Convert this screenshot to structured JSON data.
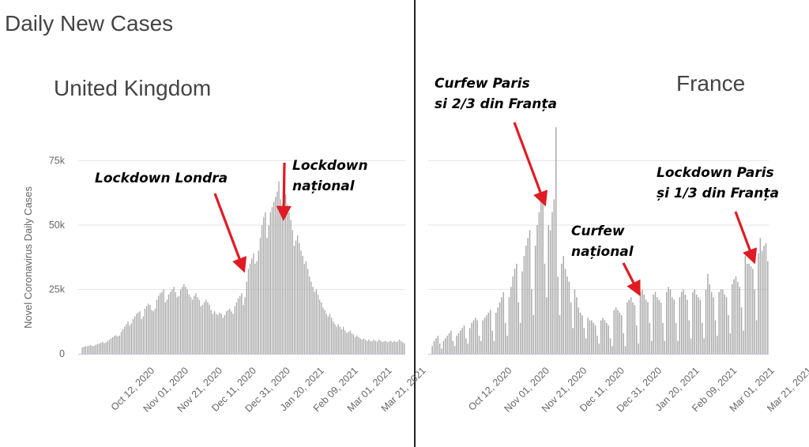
{
  "title": "Daily New Cases",
  "colors": {
    "bar": "#a9a9a9",
    "arrow": "#e01b24",
    "grid": "#e6e6e6",
    "axis": "#c8c8de"
  },
  "chart_data": [
    {
      "type": "bar",
      "title": "United Kingdom",
      "ylabel": "Novel Coronavirus Daily Cases",
      "ylim": [
        0,
        80000
      ],
      "yticks": [
        0,
        25000,
        50000,
        75000
      ],
      "yticklabels": [
        "0",
        "25k",
        "50k",
        "75k"
      ],
      "xticks": [
        "Oct 12, 2020",
        "Nov 01, 2020",
        "Nov 21, 2020",
        "Dec 11, 2020",
        "Dec 31, 2020",
        "Jan 20, 2021",
        "Feb 09, 2021",
        "Mar 01, 2021",
        "Mar 21, 2021"
      ],
      "grid": true,
      "series": [
        {
          "start_date": "2020-09-01",
          "values": [
            2500,
            2700,
            2900,
            3000,
            3200,
            3300,
            3000,
            3100,
            3500,
            3800,
            4000,
            4300,
            4600,
            4200,
            4400,
            5000,
            5500,
            6000,
            6500,
            7000,
            7200,
            6800,
            7100,
            8500,
            9500,
            10500,
            11500,
            12500,
            11000,
            11800,
            13500,
            14500,
            15500,
            16000,
            16500,
            13500,
            14500,
            17500,
            18500,
            19500,
            19000,
            17000,
            16500,
            17500,
            21000,
            22500,
            23500,
            24000,
            25000,
            20000,
            21000,
            23000,
            24000,
            25000,
            26000,
            24000,
            22000,
            22500,
            25000,
            26000,
            27000,
            26000,
            25000,
            23000,
            22000,
            21000,
            22500,
            23500,
            22000,
            21000,
            18500,
            19000,
            20000,
            21000,
            20000,
            19000,
            17000,
            15500,
            16500,
            15500,
            15000,
            16000,
            15500,
            14000,
            15000,
            16500,
            17000,
            17500,
            16500,
            15500,
            18500,
            20000,
            21500,
            22500,
            23500,
            19000,
            22000,
            28000,
            33000,
            35000,
            37000,
            39000,
            35000,
            36000,
            40000,
            45000,
            50000,
            53000,
            55000,
            45000,
            50000,
            55000,
            57000,
            59000,
            61000,
            63000,
            67000,
            60000,
            58000,
            60000,
            62000,
            58000,
            55000,
            52000,
            48000,
            42000,
            44000,
            46000,
            43000,
            40000,
            38000,
            35000,
            36000,
            33000,
            30000,
            28000,
            26000,
            24000,
            25000,
            23000,
            21000,
            20000,
            18000,
            17000,
            15500,
            14500,
            15500,
            14000,
            12500,
            11500,
            10500,
            11500,
            10500,
            9500,
            10500,
            9000,
            8000,
            8500,
            9000,
            8000,
            7500,
            6500,
            7000,
            6500,
            6000,
            5500,
            6000,
            5500,
            5000,
            5500,
            5000,
            4800,
            5500,
            5000,
            4800,
            5500,
            5000,
            4600,
            4800,
            5000,
            4500,
            4800,
            5000,
            4500,
            5000,
            4600,
            4800,
            5500,
            5000,
            4500,
            4000
          ]
        }
      ],
      "annotations": [
        {
          "text": [
            "Lockdown Londra"
          ],
          "x": "2020-12-16",
          "y": 34000
        },
        {
          "text": [
            "Lockdown",
            "național"
          ],
          "x": "2021-01-04",
          "y": 55000
        }
      ]
    },
    {
      "type": "bar",
      "title": "France",
      "ylim": [
        0,
        80000
      ],
      "yticks": [
        0,
        25000,
        50000,
        75000
      ],
      "xticks": [
        "Oct 12, 2020",
        "Nov 01, 2020",
        "Nov 21, 2020",
        "Dec 11, 2020",
        "Dec 31, 2020",
        "Jan 20, 2021",
        "Feb 09, 2021",
        "Mar 01, 2021",
        "Mar 21, 2021"
      ],
      "grid": true,
      "series": [
        {
          "start_date": "2020-09-01",
          "values": [
            3000,
            5000,
            6000,
            7000,
            4000,
            2000,
            5000,
            6000,
            7000,
            8000,
            9000,
            5000,
            3000,
            7000,
            8000,
            9000,
            10000,
            11000,
            6000,
            4000,
            10000,
            12000,
            13000,
            14000,
            13000,
            7000,
            5000,
            13000,
            14000,
            15000,
            16000,
            17000,
            9000,
            5000,
            16000,
            18000,
            20000,
            22000,
            24000,
            12000,
            7000,
            22000,
            26000,
            30000,
            33000,
            35000,
            20000,
            12000,
            32000,
            38000,
            42000,
            45000,
            48000,
            25000,
            15000,
            42000,
            50000,
            55000,
            60000,
            62000,
            35000,
            22000,
            50000,
            48000,
            55000,
            60000,
            88000,
            30000,
            15000,
            35000,
            38000,
            33000,
            30000,
            28000,
            20000,
            10000,
            25000,
            22000,
            18000,
            16000,
            15000,
            10000,
            6000,
            14000,
            13000,
            13000,
            12000,
            11000,
            7000,
            4000,
            13000,
            14000,
            13000,
            12000,
            11000,
            6000,
            3000,
            17000,
            18000,
            17000,
            16000,
            15000,
            8000,
            3000,
            20000,
            21000,
            22000,
            20000,
            19000,
            11000,
            4000,
            24000,
            25000,
            23000,
            21000,
            20000,
            12000,
            5000,
            23000,
            24000,
            22000,
            21000,
            20000,
            12000,
            5000,
            24000,
            26000,
            25000,
            22000,
            21000,
            12000,
            5000,
            22000,
            24000,
            25000,
            23000,
            21000,
            13000,
            6000,
            24000,
            25000,
            23000,
            22000,
            21000,
            12000,
            6000,
            25000,
            31000,
            27000,
            24000,
            22000,
            13000,
            7000,
            24000,
            25000,
            25000,
            23000,
            22000,
            15000,
            8000,
            27000,
            29000,
            30000,
            28000,
            26000,
            18000,
            9000,
            38000,
            35000,
            35000,
            34000,
            33000,
            25000,
            13000,
            39000,
            45000,
            40000,
            42000,
            43000,
            36000
          ]
        }
      ],
      "annotations": [
        {
          "text": [
            "Curfew Paris",
            "si 2/3 din Franța"
          ],
          "x": "2020-10-31",
          "y": 60000
        },
        {
          "text": [
            "Curfew",
            "național"
          ],
          "x": "2020-12-24",
          "y": 25000
        },
        {
          "text": [
            "Lockdown Paris",
            "și 1/3 din Franța"
          ],
          "x": "2021-03-19",
          "y": 38000
        }
      ]
    }
  ]
}
